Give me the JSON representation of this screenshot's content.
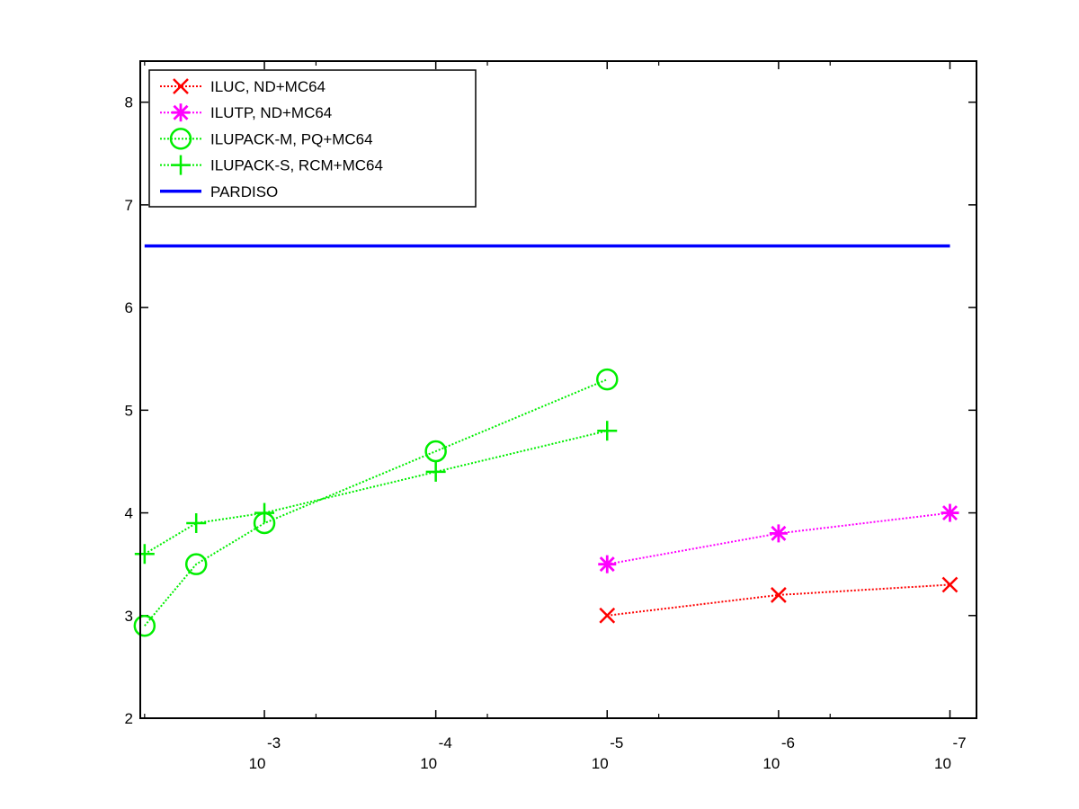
{
  "chart_data": {
    "type": "line",
    "xscale": "log",
    "xaxis_reversed": true,
    "xlim": [
      0.0053,
      7e-08
    ],
    "ylim": [
      2,
      8.4
    ],
    "x_ticks": [
      {
        "value": 0.001,
        "base": "10",
        "exponent": "-3"
      },
      {
        "value": 0.0001,
        "base": "10",
        "exponent": "-4"
      },
      {
        "value": 1e-05,
        "base": "10",
        "exponent": "-5"
      },
      {
        "value": 1e-06,
        "base": "10",
        "exponent": "-6"
      },
      {
        "value": 1e-07,
        "base": "10",
        "exponent": "-7"
      }
    ],
    "y_ticks": [
      "2",
      "3",
      "4",
      "5",
      "6",
      "7",
      "8"
    ],
    "legend_position": "top-left",
    "series": [
      {
        "name": "ILUC,  ND+MC64",
        "color": "#ff0000",
        "marker": "x",
        "line": "dotted",
        "points": [
          [
            1e-05,
            3.0
          ],
          [
            1e-06,
            3.2
          ],
          [
            1e-07,
            3.3
          ]
        ]
      },
      {
        "name": "ILUTP,  ND+MC64",
        "color": "#ff00ff",
        "marker": "asterisk",
        "line": "dotted",
        "points": [
          [
            1e-05,
            3.5
          ],
          [
            1e-06,
            3.8
          ],
          [
            1e-07,
            4.0
          ]
        ]
      },
      {
        "name": "ILUPACK-M, PQ+MC64",
        "color": "#00ee00",
        "marker": "circle",
        "line": "dotted",
        "points": [
          [
            0.005,
            2.9
          ],
          [
            0.0025,
            3.5
          ],
          [
            0.001,
            3.9
          ],
          [
            0.0001,
            4.6
          ],
          [
            1e-05,
            5.3
          ]
        ]
      },
      {
        "name": "ILUPACK-S, RCM+MC64",
        "color": "#00ee00",
        "marker": "plus",
        "line": "dotted",
        "points": [
          [
            0.005,
            3.6
          ],
          [
            0.0025,
            3.9
          ],
          [
            0.001,
            4.0
          ],
          [
            0.0001,
            4.4
          ],
          [
            1e-05,
            4.8
          ]
        ]
      },
      {
        "name": "PARDISO",
        "color": "#0000ff",
        "marker": "none",
        "line": "solid",
        "points": [
          [
            0.005,
            6.6
          ],
          [
            1e-07,
            6.6
          ]
        ]
      }
    ]
  }
}
